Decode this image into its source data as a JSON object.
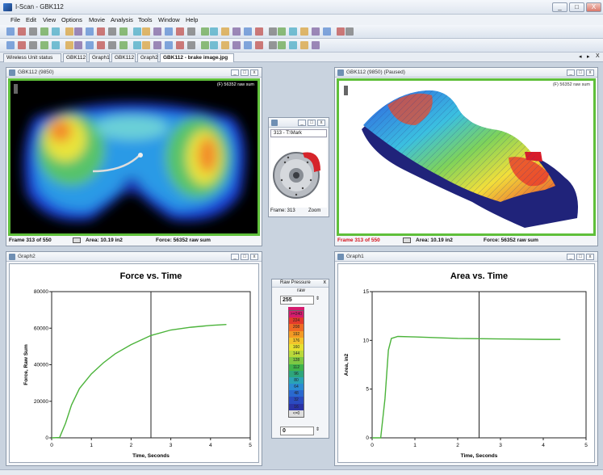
{
  "app": {
    "title": "I-Scan - GBK112",
    "window_controls": [
      "_",
      "□",
      "X"
    ]
  },
  "menu": [
    "File",
    "Edit",
    "View",
    "Options",
    "Movie",
    "Analysis",
    "Tools",
    "Window",
    "Help"
  ],
  "tabs": [
    {
      "label": "Wireless Unit status",
      "active": false
    },
    {
      "label": "GBK112",
      "active": false
    },
    {
      "label": "Graph1",
      "active": false
    },
    {
      "label": "GBK112",
      "active": false
    },
    {
      "label": "Graph2",
      "active": false
    },
    {
      "label": "GBK112 - brake image.jpg",
      "active": true
    }
  ],
  "tab_nav": [
    "◂",
    "▸",
    "X"
  ],
  "pressure_2d": {
    "title": "GBK112 (9850)",
    "overlay": "(F) 56352 raw sum",
    "status": {
      "frame": "Frame 313 of 550",
      "area": "Area: 10.19 in2",
      "force": "Force: 56352 raw sum"
    }
  },
  "pressure_3d": {
    "title": "GBK112 (9850) (Paused)",
    "overlay": "(F) 56352 raw sum",
    "status": {
      "frame": "Frame 313 of 550",
      "area": "Area: 10.19 in2",
      "force": "Force: 56352 raw sum"
    }
  },
  "brake_image": {
    "title": "313 - T:\\Mark",
    "frame": "Frame: 313",
    "zoom": "Zoom"
  },
  "graph2": {
    "window_title": "Graph2",
    "chart_data": {
      "type": "line",
      "title": "Force vs. Time",
      "xlabel": "Time, Seconds",
      "ylabel": "Force, Raw Sum",
      "xlim": [
        0,
        5
      ],
      "ylim": [
        0,
        80000
      ],
      "xticks": [
        "0",
        "1",
        "2",
        "3",
        "4",
        "5"
      ],
      "yticks": [
        "0",
        "20000",
        "40000",
        "60000",
        "80000"
      ],
      "cursor_x": 2.5,
      "series": [
        {
          "color": "#4bb33a",
          "x": [
            0,
            0.2,
            0.35,
            0.5,
            0.7,
            1.0,
            1.3,
            1.6,
            2.0,
            2.5,
            3.0,
            3.5,
            4.0,
            4.4
          ],
          "y": [
            0,
            200,
            8000,
            18000,
            27000,
            35000,
            41000,
            46000,
            51000,
            56000,
            59000,
            60500,
            61500,
            62000
          ]
        }
      ]
    }
  },
  "graph1": {
    "window_title": "Graph1",
    "chart_data": {
      "type": "line",
      "title": "Area vs. Time",
      "xlabel": "Time, Seconds",
      "ylabel": "Area, in2",
      "xlim": [
        0,
        5
      ],
      "ylim": [
        0,
        15
      ],
      "xticks": [
        "0",
        "1",
        "2",
        "3",
        "4",
        "5"
      ],
      "yticks": [
        "0",
        "5",
        "10",
        "15"
      ],
      "cursor_x": 2.5,
      "series": [
        {
          "color": "#4bb33a",
          "x": [
            0,
            0.2,
            0.3,
            0.38,
            0.45,
            0.6,
            1.0,
            2.0,
            3.0,
            4.0,
            4.4
          ],
          "y": [
            0,
            0,
            4,
            9,
            10.2,
            10.4,
            10.35,
            10.2,
            10.15,
            10.1,
            10.1
          ]
        }
      ]
    }
  },
  "legend": {
    "title": "Raw Pressure",
    "unit": "raw",
    "max_value": "255",
    "min_value": "0",
    "levels": [
      ">=240",
      "224",
      "208",
      "192",
      "176",
      "160",
      "144",
      "128",
      "112",
      "96",
      "80",
      "64",
      "48",
      "32",
      "16",
      "<=0"
    ],
    "colors": [
      "#d51c6e",
      "#e23a2c",
      "#ef6a24",
      "#f39a24",
      "#f3c32b",
      "#e6e02f",
      "#b9d83a",
      "#7ec843",
      "#3fb34b",
      "#2ea57c",
      "#2aa3b5",
      "#2a8bd3",
      "#2a69cf",
      "#2a4bc0",
      "#2a33a6",
      "#dedede"
    ]
  }
}
